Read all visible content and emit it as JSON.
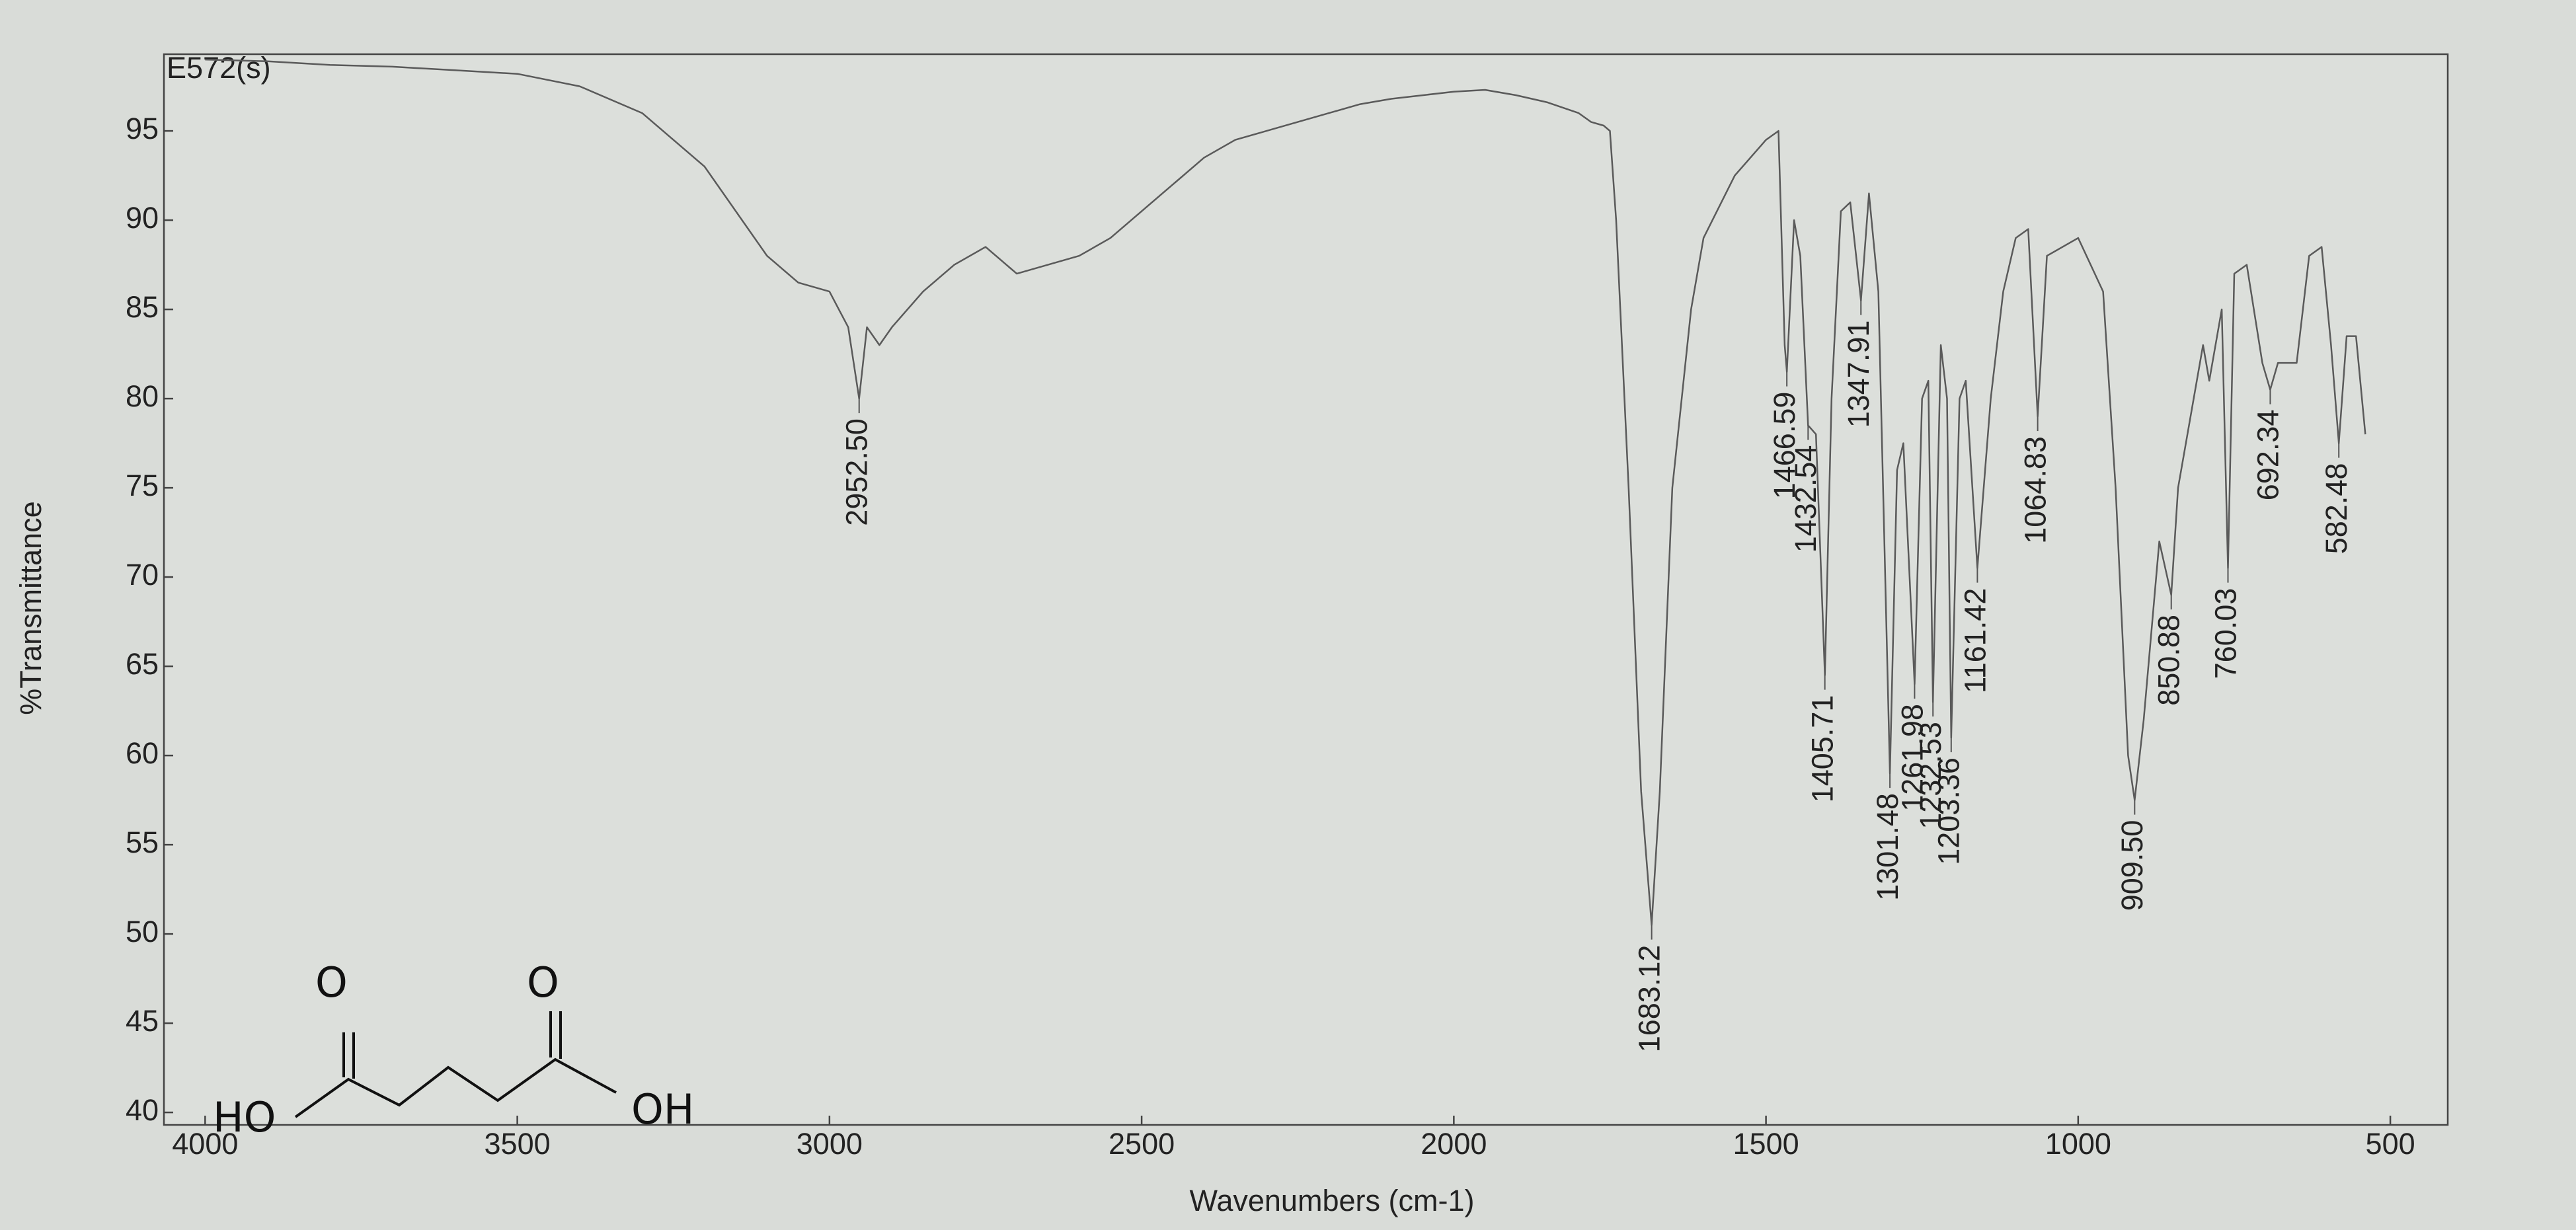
{
  "chart_data": {
    "type": "line",
    "title": "E572(s)",
    "y_label": "%Transmittance",
    "x_label": "Wavenumbers (cm-1)",
    "xlim": [
      4066,
      408
    ],
    "ylim": [
      39.3,
      99.3
    ],
    "xticks": [
      4000,
      3500,
      3000,
      2500,
      2000,
      1500,
      1000,
      500
    ],
    "yticks": [
      40,
      45,
      50,
      55,
      60,
      65,
      70,
      75,
      80,
      85,
      90,
      95
    ],
    "x": [
      4000,
      3900,
      3800,
      3700,
      3600,
      3500,
      3400,
      3300,
      3200,
      3100,
      3050,
      3000,
      2970,
      2952.5,
      2940,
      2920,
      2900,
      2850,
      2800,
      2750,
      2700,
      2650,
      2600,
      2550,
      2500,
      2450,
      2400,
      2350,
      2300,
      2250,
      2200,
      2150,
      2100,
      2050,
      2000,
      1950,
      1900,
      1850,
      1800,
      1780,
      1760,
      1750,
      1740,
      1720,
      1700,
      1683.12,
      1670,
      1650,
      1620,
      1600,
      1550,
      1500,
      1480,
      1470,
      1466.59,
      1455,
      1445,
      1432.54,
      1420,
      1405.71,
      1395,
      1380,
      1365,
      1347.91,
      1335,
      1320,
      1301.48,
      1290,
      1280,
      1261.98,
      1250,
      1240,
      1232.53,
      1220,
      1210,
      1203.36,
      1190,
      1180,
      1161.42,
      1140,
      1120,
      1100,
      1080,
      1064.83,
      1050,
      1000,
      960,
      940,
      920,
      909.5,
      895,
      870,
      850.88,
      840,
      800,
      790,
      770,
      760.03,
      750,
      730,
      705,
      692.34,
      680,
      650,
      630,
      610,
      595,
      582.48,
      570,
      555,
      540
    ],
    "series": [
      {
        "name": "E572(s)",
        "color": "#5a5a5a",
        "values": [
          99,
          98.9,
          98.7,
          98.6,
          98.4,
          98.2,
          97.5,
          96,
          93,
          88,
          86.5,
          86,
          84,
          80,
          84,
          83,
          84,
          86,
          87.5,
          88.5,
          87,
          87.5,
          88,
          89,
          90.5,
          92,
          93.5,
          94.5,
          95,
          95.5,
          96,
          96.5,
          96.8,
          97,
          97.2,
          97.3,
          97,
          96.6,
          96,
          95.5,
          95.3,
          95,
          90,
          75,
          58,
          50.5,
          58,
          75,
          85,
          89,
          92.5,
          94.5,
          95,
          83,
          81.5,
          90,
          88,
          78.5,
          78,
          64.5,
          80,
          90.5,
          91,
          85.5,
          91.5,
          86,
          59,
          76,
          77.5,
          64,
          80,
          81,
          63,
          83,
          80,
          61,
          80,
          81,
          70.5,
          80,
          86,
          89,
          89.5,
          79,
          88,
          89,
          86,
          75,
          60,
          57.5,
          62,
          72,
          69,
          75,
          83,
          81,
          85,
          70.5,
          87,
          87.5,
          82,
          80.5,
          82,
          82,
          88,
          88.5,
          83,
          77.5,
          83.5,
          83.5,
          78
        ]
      }
    ],
    "annotations": [
      {
        "x": 2952.5,
        "y": 80,
        "label": "2952.50"
      },
      {
        "x": 1683.12,
        "y": 50.5,
        "label": "1683.12"
      },
      {
        "x": 1466.59,
        "y": 81.5,
        "label": "1466.59"
      },
      {
        "x": 1432.54,
        "y": 78.5,
        "label": "1432.54"
      },
      {
        "x": 1405.71,
        "y": 64.5,
        "label": "1405.71"
      },
      {
        "x": 1347.91,
        "y": 85.5,
        "label": "1347.91"
      },
      {
        "x": 1301.48,
        "y": 59,
        "label": "1301.48"
      },
      {
        "x": 1261.98,
        "y": 64,
        "label": "1261.98"
      },
      {
        "x": 1232.53,
        "y": 63,
        "label": "1232.53"
      },
      {
        "x": 1203.36,
        "y": 61,
        "label": "1203.36"
      },
      {
        "x": 1161.42,
        "y": 70.5,
        "label": "1161.42"
      },
      {
        "x": 1064.83,
        "y": 79,
        "label": "1064.83"
      },
      {
        "x": 909.5,
        "y": 57.5,
        "label": "909.50"
      },
      {
        "x": 850.88,
        "y": 69,
        "label": "850.88"
      },
      {
        "x": 760.03,
        "y": 70.5,
        "label": "760.03"
      },
      {
        "x": 692.34,
        "y": 80.5,
        "label": "692.34"
      },
      {
        "x": 582.48,
        "y": 77.5,
        "label": "582.48"
      }
    ],
    "structure_labels": [
      "HO",
      "O",
      "O",
      "OH"
    ]
  }
}
